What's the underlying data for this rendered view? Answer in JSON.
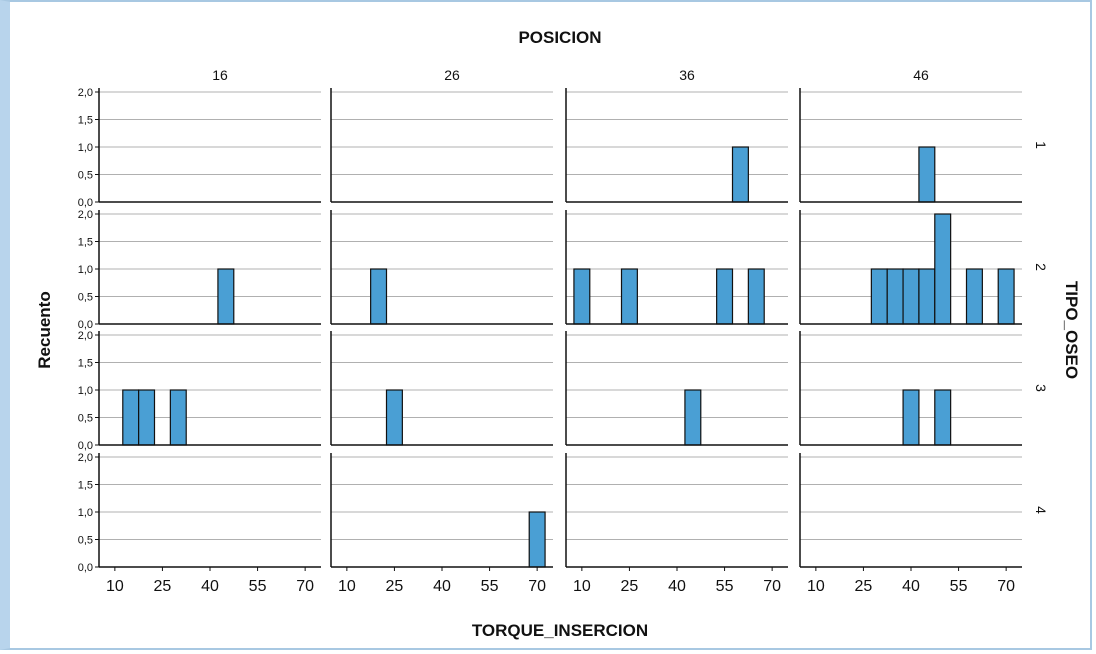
{
  "chart_data": {
    "type": "bar",
    "title": "POSICION",
    "xlabel": "TORQUE_INSERCION",
    "ylabel": "Recuento",
    "row_facet_label": "TIPO_OSEO",
    "col_facets": [
      "16",
      "26",
      "36",
      "46"
    ],
    "row_facets": [
      "1",
      "2",
      "3",
      "4"
    ],
    "x_ticks": [
      "10",
      "25",
      "40",
      "55",
      "70"
    ],
    "y_ticks": [
      "0,0",
      "0,5",
      "1,0",
      "1,5",
      "2,0"
    ],
    "xlim": [
      5,
      75
    ],
    "ylim": [
      0,
      2
    ],
    "bin_width": 5,
    "bar_color": "#4a9fd4",
    "grid": true,
    "panels": [
      {
        "row": "1",
        "col": "16",
        "bars": []
      },
      {
        "row": "1",
        "col": "26",
        "bars": []
      },
      {
        "row": "1",
        "col": "36",
        "bars": [
          {
            "x": 60,
            "count": 1
          }
        ]
      },
      {
        "row": "1",
        "col": "46",
        "bars": [
          {
            "x": 45,
            "count": 1
          }
        ]
      },
      {
        "row": "2",
        "col": "16",
        "bars": [
          {
            "x": 45,
            "count": 1
          }
        ]
      },
      {
        "row": "2",
        "col": "26",
        "bars": [
          {
            "x": 20,
            "count": 1
          }
        ]
      },
      {
        "row": "2",
        "col": "36",
        "bars": [
          {
            "x": 10,
            "count": 1
          },
          {
            "x": 25,
            "count": 1
          },
          {
            "x": 55,
            "count": 1
          },
          {
            "x": 65,
            "count": 1
          }
        ]
      },
      {
        "row": "2",
        "col": "46",
        "bars": [
          {
            "x": 30,
            "count": 1
          },
          {
            "x": 35,
            "count": 1
          },
          {
            "x": 40,
            "count": 1
          },
          {
            "x": 45,
            "count": 1
          },
          {
            "x": 50,
            "count": 2
          },
          {
            "x": 60,
            "count": 1
          },
          {
            "x": 70,
            "count": 1
          }
        ]
      },
      {
        "row": "3",
        "col": "16",
        "bars": [
          {
            "x": 15,
            "count": 1
          },
          {
            "x": 20,
            "count": 1
          },
          {
            "x": 30,
            "count": 1
          }
        ]
      },
      {
        "row": "3",
        "col": "26",
        "bars": [
          {
            "x": 25,
            "count": 1
          }
        ]
      },
      {
        "row": "3",
        "col": "36",
        "bars": [
          {
            "x": 45,
            "count": 1
          }
        ]
      },
      {
        "row": "3",
        "col": "46",
        "bars": [
          {
            "x": 40,
            "count": 1
          },
          {
            "x": 50,
            "count": 1
          }
        ]
      },
      {
        "row": "4",
        "col": "16",
        "bars": []
      },
      {
        "row": "4",
        "col": "26",
        "bars": [
          {
            "x": 70,
            "count": 1
          }
        ]
      },
      {
        "row": "4",
        "col": "36",
        "bars": []
      },
      {
        "row": "4",
        "col": "46",
        "bars": []
      }
    ]
  }
}
